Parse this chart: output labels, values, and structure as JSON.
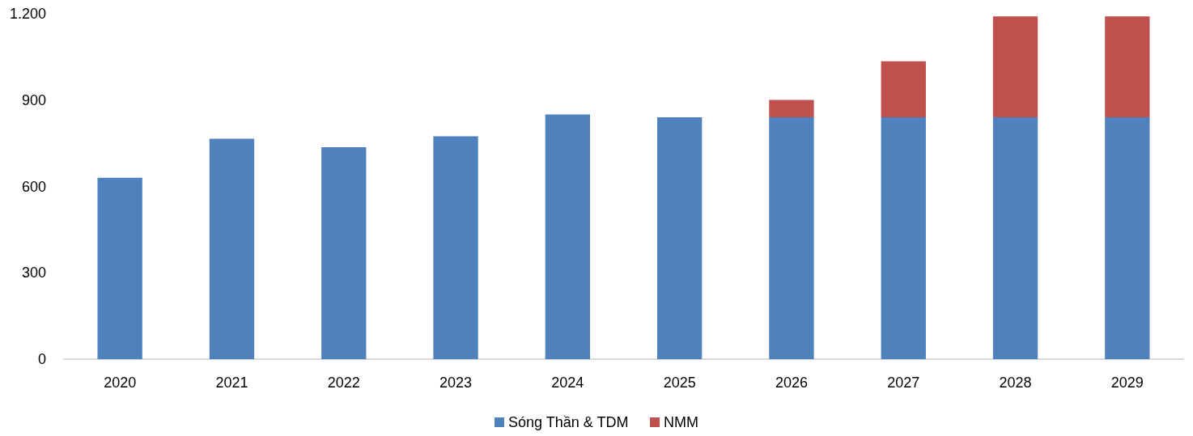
{
  "chart_data": {
    "type": "bar",
    "stacked": true,
    "categories": [
      "2020",
      "2021",
      "2022",
      "2023",
      "2024",
      "2025",
      "2026",
      "2027",
      "2028",
      "2029"
    ],
    "series": [
      {
        "name": "Sóng Thần & TDM",
        "color": "#4f81bd",
        "values": [
          630,
          766,
          736,
          774,
          850,
          840,
          840,
          840,
          840,
          840
        ]
      },
      {
        "name": "NMM",
        "color": "#c0504d",
        "values": [
          null,
          null,
          null,
          null,
          null,
          null,
          61,
          195,
          351,
          351
        ]
      }
    ],
    "ylim": [
      0,
      1200
    ],
    "yticks": [
      0,
      300,
      600,
      900,
      {
        "value": 1200,
        "label": "1.200"
      }
    ],
    "grid": false,
    "legend": "bottom"
  }
}
